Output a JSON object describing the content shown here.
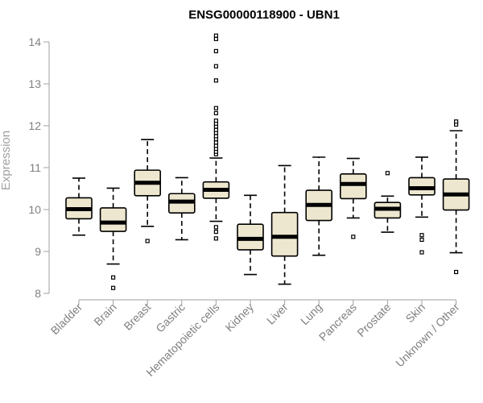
{
  "chart_data": {
    "type": "box",
    "title": "ENSG00000118900 - UBN1",
    "xlabel": "",
    "ylabel": "Expression",
    "ylim": [
      8,
      14.3
    ],
    "yticks": [
      8,
      9,
      10,
      11,
      12,
      13,
      14
    ],
    "grid": false,
    "legend": "none",
    "colors": {
      "box_fill": "#ede7cf",
      "box_stroke": "#000000",
      "axis": "#a0a0a0",
      "tick_text": "#808080"
    },
    "categories": [
      "Bladder",
      "Brain",
      "Breast",
      "Gastric",
      "Hematopoietic cells",
      "Kidney",
      "Liver",
      "Lung",
      "Pancreas",
      "Prostate",
      "Skin",
      "Unknown / Other"
    ],
    "boxes": [
      {
        "q1": 9.78,
        "median": 10.01,
        "q3": 10.28,
        "whisker_low": 9.39,
        "whisker_high": 10.75,
        "outliers": []
      },
      {
        "q1": 9.48,
        "median": 9.69,
        "q3": 10.04,
        "whisker_low": 8.7,
        "whisker_high": 10.51,
        "outliers": [
          8.38,
          8.13
        ]
      },
      {
        "q1": 10.33,
        "median": 10.64,
        "q3": 10.94,
        "whisker_low": 9.6,
        "whisker_high": 11.67,
        "outliers": [
          9.25
        ]
      },
      {
        "q1": 9.92,
        "median": 10.19,
        "q3": 10.38,
        "whisker_low": 9.28,
        "whisker_high": 10.76,
        "outliers": []
      },
      {
        "q1": 10.27,
        "median": 10.47,
        "q3": 10.66,
        "whisker_low": 9.72,
        "whisker_high": 11.23,
        "outliers": [
          9.58,
          9.47,
          9.31,
          11.32,
          11.38,
          11.45,
          11.52,
          11.6,
          11.68,
          11.75,
          11.83,
          11.9,
          11.98,
          12.05,
          12.12,
          12.3,
          12.42,
          13.08,
          13.42,
          13.78,
          14.07,
          14.15
        ]
      },
      {
        "q1": 9.04,
        "median": 9.3,
        "q3": 9.65,
        "whisker_low": 8.45,
        "whisker_high": 10.34,
        "outliers": []
      },
      {
        "q1": 8.89,
        "median": 9.35,
        "q3": 9.93,
        "whisker_low": 8.22,
        "whisker_high": 11.05,
        "outliers": []
      },
      {
        "q1": 9.74,
        "median": 10.11,
        "q3": 10.46,
        "whisker_low": 8.91,
        "whisker_high": 11.25,
        "outliers": []
      },
      {
        "q1": 10.26,
        "median": 10.61,
        "q3": 10.85,
        "whisker_low": 9.8,
        "whisker_high": 11.22,
        "outliers": [
          9.35
        ]
      },
      {
        "q1": 9.8,
        "median": 10.02,
        "q3": 10.17,
        "whisker_low": 9.46,
        "whisker_high": 10.32,
        "outliers": [
          10.87
        ]
      },
      {
        "q1": 10.35,
        "median": 10.51,
        "q3": 10.76,
        "whisker_low": 9.82,
        "whisker_high": 11.25,
        "outliers": [
          9.39,
          9.28,
          8.98
        ]
      },
      {
        "q1": 9.99,
        "median": 10.36,
        "q3": 10.73,
        "whisker_low": 8.97,
        "whisker_high": 11.88,
        "outliers": [
          8.51,
          12.03,
          12.1
        ]
      }
    ]
  }
}
